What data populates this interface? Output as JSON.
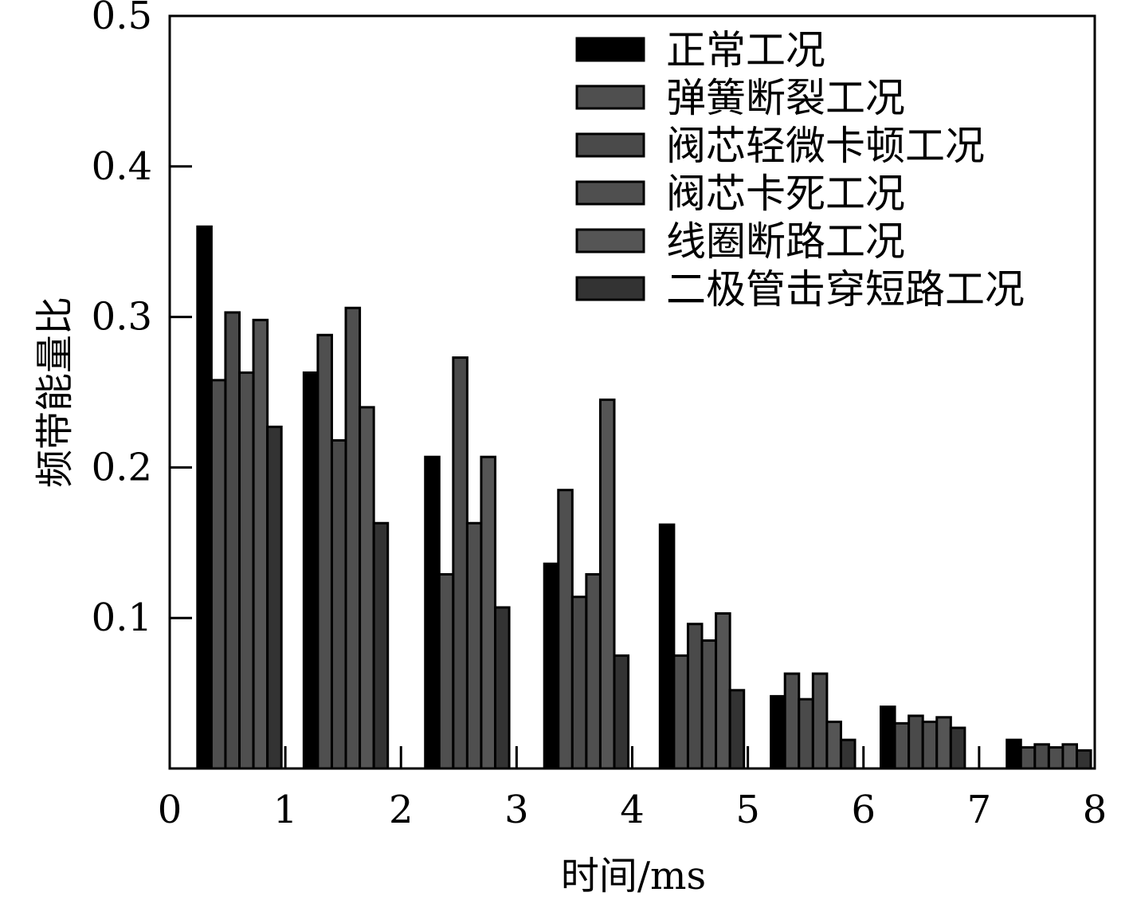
{
  "chart_data": {
    "type": "bar",
    "xlabel": "时间/ms",
    "ylabel": "频带能量比",
    "xlim": [
      0,
      8
    ],
    "ylim": [
      0,
      0.5
    ],
    "x_ticks": [
      "0",
      "1",
      "2",
      "3",
      "4",
      "5",
      "6",
      "7",
      "8"
    ],
    "y_ticks": [
      "0.1",
      "0.2",
      "0.3",
      "0.4",
      "0.5"
    ],
    "grid": false,
    "legend_position": "top-right",
    "group_starts": [
      0.24,
      1.16,
      2.21,
      3.24,
      4.24,
      5.2,
      6.15,
      7.24
    ],
    "series": [
      {
        "name": "正常工况",
        "color": "#000000",
        "values": [
          0.36,
          0.263,
          0.207,
          0.136,
          0.162,
          0.048,
          0.041,
          0.019
        ]
      },
      {
        "name": "弹簧断裂工况",
        "color": "#4f4f4f",
        "values": [
          0.258,
          0.288,
          0.129,
          0.185,
          0.075,
          0.063,
          0.03,
          0.014
        ]
      },
      {
        "name": "阀芯轻微卡顿工况",
        "color": "#4a4a4a",
        "values": [
          0.303,
          0.218,
          0.273,
          0.114,
          0.096,
          0.046,
          0.035,
          0.016
        ]
      },
      {
        "name": "阀芯卡死工况",
        "color": "#4f4f4f",
        "values": [
          0.263,
          0.306,
          0.163,
          0.129,
          0.085,
          0.063,
          0.031,
          0.014
        ]
      },
      {
        "name": "线圈断路工况",
        "color": "#555555",
        "values": [
          0.298,
          0.24,
          0.207,
          0.245,
          0.103,
          0.031,
          0.034,
          0.016
        ]
      },
      {
        "name": "二极管击穿短路工况",
        "color": "#333333",
        "values": [
          0.227,
          0.163,
          0.107,
          0.075,
          0.052,
          0.019,
          0.027,
          0.012
        ]
      }
    ]
  }
}
